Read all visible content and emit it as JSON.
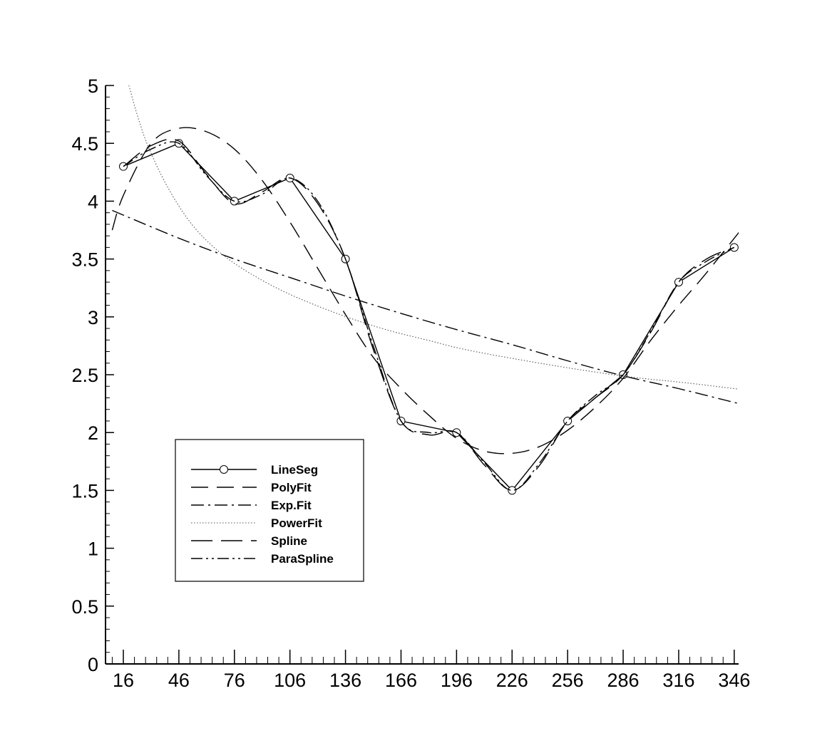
{
  "chart_data": {
    "type": "line",
    "title": "",
    "xlabel": "",
    "ylabel": "",
    "xlim": [
      10,
      351
    ],
    "ylim": [
      0,
      5
    ],
    "x_ticks": [
      "16",
      "46",
      "76",
      "106",
      "136",
      "166",
      "196",
      "226",
      "256",
      "286",
      "316",
      "346"
    ],
    "y_ticks": [
      "0",
      "0.5",
      "1",
      "1.5",
      "2",
      "2.5",
      "3",
      "3.5",
      "4",
      "4.5",
      "5"
    ],
    "legend_position": "lower-left",
    "series": [
      {
        "name": "LineSeg",
        "style": "solid-markers",
        "x": [
          16,
          46,
          76,
          106,
          136,
          166,
          196,
          226,
          256,
          286,
          316,
          346
        ],
        "y": [
          4.3,
          4.5,
          4.0,
          4.2,
          3.5,
          2.1,
          2.0,
          1.5,
          2.1,
          2.5,
          3.3,
          3.6
        ]
      },
      {
        "name": "PolyFit",
        "style": "long-dash",
        "x": [
          10,
          16,
          31,
          46,
          61,
          76,
          91,
          106,
          121,
          136,
          151,
          166,
          181,
          196,
          211,
          226,
          241,
          256,
          271,
          286,
          301,
          316,
          331,
          351
        ],
        "y": [
          3.75,
          4.05,
          4.5,
          4.63,
          4.6,
          4.45,
          4.18,
          3.82,
          3.42,
          3.02,
          2.65,
          2.38,
          2.15,
          1.95,
          1.84,
          1.82,
          1.88,
          2.02,
          2.22,
          2.47,
          2.8,
          3.1,
          3.38,
          3.78
        ]
      },
      {
        "name": "Exp.Fit",
        "style": "dash-dot",
        "x": [
          10,
          46,
          76,
          106,
          136,
          166,
          196,
          226,
          256,
          286,
          316,
          351
        ],
        "y": [
          3.92,
          3.68,
          3.5,
          3.34,
          3.18,
          3.03,
          2.89,
          2.76,
          2.62,
          2.49,
          2.38,
          2.24
        ]
      },
      {
        "name": "PowerFit",
        "style": "dotted",
        "x": [
          19,
          24,
          30,
          40,
          52,
          65,
          80,
          100,
          120,
          140,
          160,
          180,
          200,
          230,
          260,
          290,
          320,
          351
        ],
        "y": [
          5.0,
          4.72,
          4.45,
          4.12,
          3.82,
          3.6,
          3.42,
          3.24,
          3.1,
          2.98,
          2.88,
          2.8,
          2.72,
          2.63,
          2.55,
          2.48,
          2.43,
          2.37
        ]
      },
      {
        "name": "Spline",
        "style": "dash",
        "x": [
          16,
          31,
          46,
          61,
          76,
          91,
          106,
          121,
          136,
          151,
          166,
          181,
          196,
          211,
          226,
          241,
          256,
          271,
          286,
          301,
          316,
          331,
          346
        ],
        "y": [
          4.3,
          4.48,
          4.52,
          4.23,
          3.98,
          4.08,
          4.2,
          3.98,
          3.5,
          2.72,
          2.1,
          1.98,
          2.0,
          1.72,
          1.5,
          1.72,
          2.1,
          2.3,
          2.5,
          2.87,
          3.3,
          3.5,
          3.6
        ]
      },
      {
        "name": "ParaSpline",
        "style": "dash-dot-dot",
        "x": [
          16,
          31,
          46,
          61,
          76,
          91,
          106,
          121,
          136,
          151,
          166,
          181,
          196,
          211,
          226,
          241,
          256,
          271,
          286,
          301,
          316,
          331,
          346
        ],
        "y": [
          4.3,
          4.45,
          4.5,
          4.22,
          4.0,
          4.06,
          4.2,
          4.0,
          3.5,
          2.75,
          2.1,
          2.0,
          2.0,
          1.74,
          1.5,
          1.74,
          2.1,
          2.32,
          2.5,
          2.88,
          3.3,
          3.48,
          3.6
        ]
      }
    ]
  }
}
